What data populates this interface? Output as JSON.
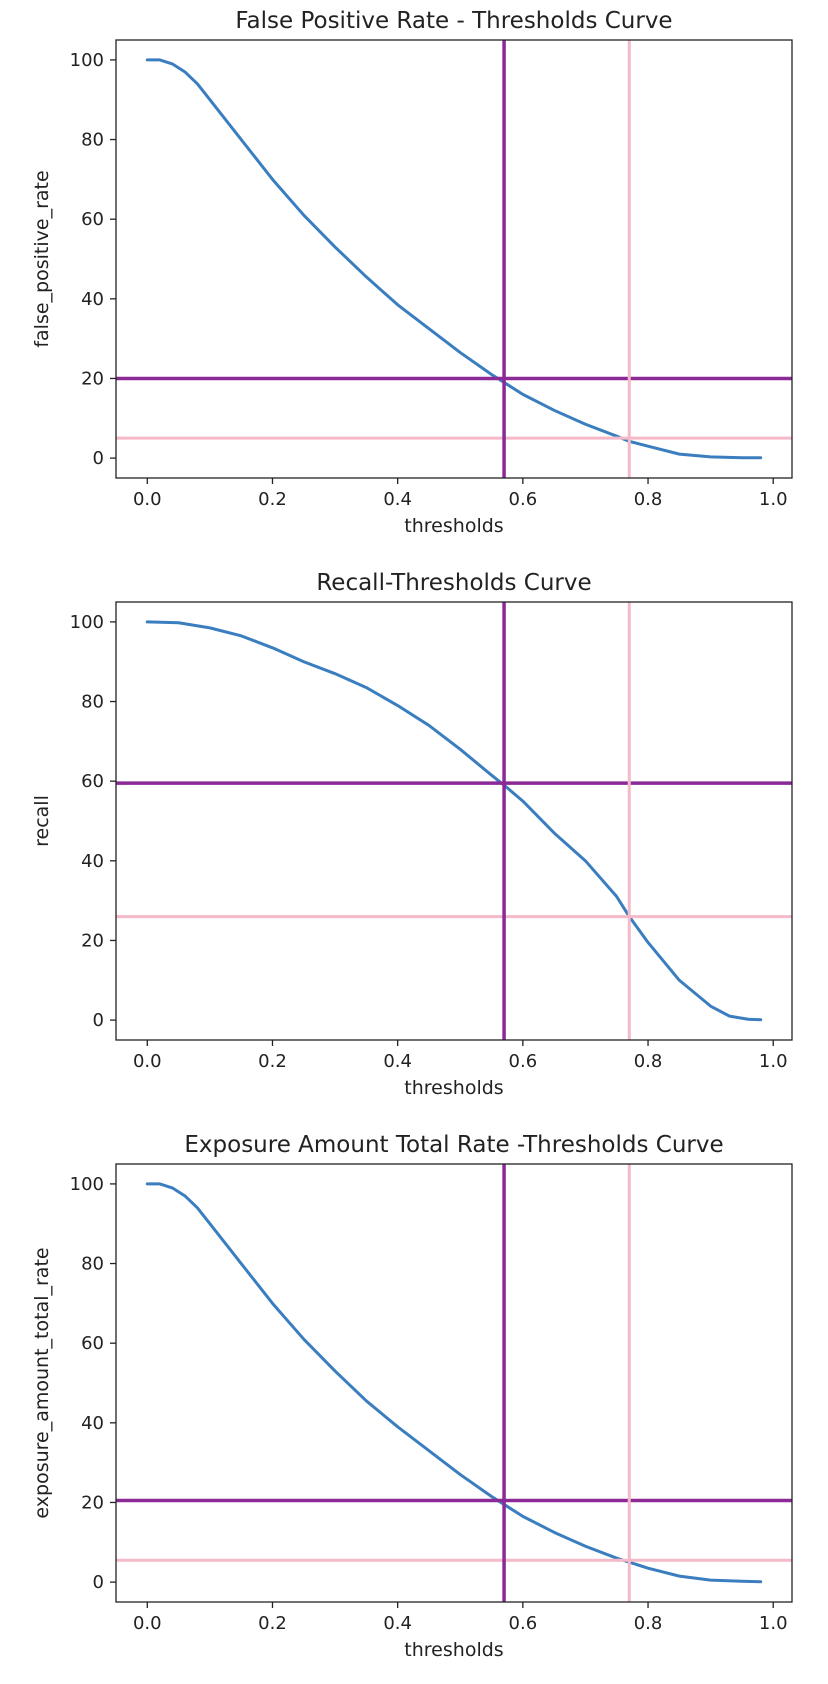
{
  "chart_data": [
    {
      "type": "line",
      "title": "False Positive Rate - Thresholds Curve",
      "xlabel": "thresholds",
      "ylabel": "false_positive_rate",
      "xlim": [
        -0.05,
        1.03
      ],
      "ylim": [
        -5,
        105
      ],
      "xticks": [
        "0.0",
        "0.2",
        "0.4",
        "0.6",
        "0.8",
        "1.0"
      ],
      "yticks": [
        "0",
        "20",
        "40",
        "60",
        "80",
        "100"
      ],
      "grid": false,
      "vertical_lines": [
        {
          "x": 0.57,
          "color": "#8b2a96"
        },
        {
          "x": 0.77,
          "color": "#f6b9c8"
        }
      ],
      "horizontal_lines": [
        {
          "y": 20,
          "color": "#8b2a96"
        },
        {
          "y": 5,
          "color": "#f6b9c8"
        }
      ],
      "series": [
        {
          "color": "#3a7ebf",
          "x": [
            0.0,
            0.02,
            0.04,
            0.06,
            0.08,
            0.1,
            0.15,
            0.2,
            0.25,
            0.3,
            0.35,
            0.4,
            0.45,
            0.5,
            0.55,
            0.57,
            0.6,
            0.65,
            0.7,
            0.75,
            0.77,
            0.8,
            0.85,
            0.9,
            0.95,
            0.98
          ],
          "y": [
            100,
            100,
            99,
            97,
            94,
            90,
            80,
            70,
            61,
            53,
            45.5,
            38.5,
            32.5,
            26.5,
            21,
            19,
            16,
            12,
            8.5,
            5.5,
            4.2,
            3,
            1,
            0.3,
            0.1,
            0.1
          ]
        }
      ]
    },
    {
      "type": "line",
      "title": "Recall-Thresholds Curve",
      "xlabel": "thresholds",
      "ylabel": "recall",
      "xlim": [
        -0.05,
        1.03
      ],
      "ylim": [
        -5,
        105
      ],
      "xticks": [
        "0.0",
        "0.2",
        "0.4",
        "0.6",
        "0.8",
        "1.0"
      ],
      "yticks": [
        "0",
        "20",
        "40",
        "60",
        "80",
        "100"
      ],
      "grid": false,
      "vertical_lines": [
        {
          "x": 0.57,
          "color": "#8b2a96"
        },
        {
          "x": 0.77,
          "color": "#f6b9c8"
        }
      ],
      "horizontal_lines": [
        {
          "y": 59.5,
          "color": "#8b2a96"
        },
        {
          "y": 26,
          "color": "#f6b9c8"
        }
      ],
      "series": [
        {
          "color": "#3a7ebf",
          "x": [
            0.0,
            0.05,
            0.1,
            0.15,
            0.2,
            0.25,
            0.3,
            0.35,
            0.4,
            0.45,
            0.5,
            0.55,
            0.57,
            0.6,
            0.65,
            0.7,
            0.75,
            0.77,
            0.8,
            0.85,
            0.9,
            0.93,
            0.96,
            0.98
          ],
          "y": [
            100,
            99.8,
            98.5,
            96.5,
            93.5,
            90,
            87,
            83.5,
            79,
            74,
            68,
            61.5,
            59,
            55,
            47,
            40,
            31,
            26,
            19.5,
            10,
            3.5,
            1,
            0.2,
            0.1
          ]
        }
      ]
    },
    {
      "type": "line",
      "title": "Exposure Amount Total Rate -Thresholds Curve",
      "xlabel": "thresholds",
      "ylabel": "exposure_amount_total_rate",
      "xlim": [
        -0.05,
        1.03
      ],
      "ylim": [
        -5,
        105
      ],
      "xticks": [
        "0.0",
        "0.2",
        "0.4",
        "0.6",
        "0.8",
        "1.0"
      ],
      "yticks": [
        "0",
        "20",
        "40",
        "60",
        "80",
        "100"
      ],
      "grid": false,
      "vertical_lines": [
        {
          "x": 0.57,
          "color": "#8b2a96"
        },
        {
          "x": 0.77,
          "color": "#f6b9c8"
        }
      ],
      "horizontal_lines": [
        {
          "y": 20.5,
          "color": "#8b2a96"
        },
        {
          "y": 5.5,
          "color": "#f6b9c8"
        }
      ],
      "series": [
        {
          "color": "#3a7ebf",
          "x": [
            0.0,
            0.02,
            0.04,
            0.06,
            0.08,
            0.1,
            0.15,
            0.2,
            0.25,
            0.3,
            0.35,
            0.4,
            0.45,
            0.5,
            0.55,
            0.57,
            0.6,
            0.65,
            0.7,
            0.75,
            0.77,
            0.8,
            0.85,
            0.9,
            0.95,
            0.98
          ],
          "y": [
            100,
            100,
            99,
            97,
            94,
            90,
            80,
            70,
            61,
            53,
            45.5,
            39,
            33,
            27,
            21.5,
            19.5,
            16.5,
            12.5,
            9,
            6,
            5,
            3.5,
            1.5,
            0.5,
            0.2,
            0.1
          ]
        }
      ]
    }
  ]
}
